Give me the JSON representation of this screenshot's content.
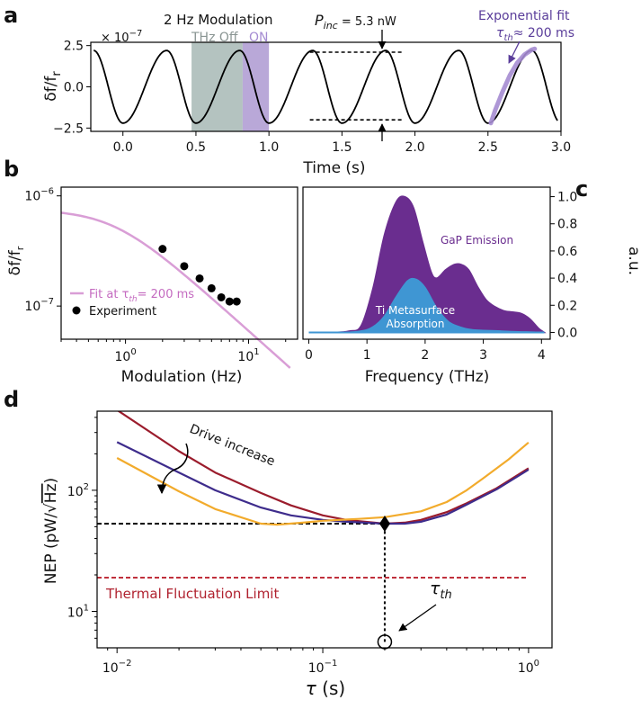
{
  "chart_data": [
    {
      "panel": "a",
      "type": "line",
      "xlabel": "Time (s)",
      "ylabel": "δf/f",
      "ylabel_sub": "r",
      "y_multiplier": "× 10",
      "y_multiplier_exp": "−7",
      "xlim": [
        -0.22,
        3.0
      ],
      "ylim": [
        -2.7,
        2.7
      ],
      "xticks": [
        0.0,
        0.5,
        1.0,
        1.5,
        2.0,
        2.5,
        3.0
      ],
      "xtick_labels": [
        "0.0",
        "0.5",
        "1.0",
        "1.5",
        "2.0",
        "2.5",
        "3.0"
      ],
      "yticks": [
        -2.5,
        0.0,
        2.5
      ],
      "ytick_labels": [
        "−2.5",
        "0.0",
        "2.5"
      ],
      "modulation": {
        "period": 0.5,
        "amplitude": 2.2,
        "first_min": 0.0,
        "first_max": 0.3,
        "x_start": -0.2,
        "x_end": 2.98
      },
      "shaded_regions": [
        {
          "label": "THz Off",
          "x": [
            0.47,
            0.82
          ],
          "color": "#b4c3c0"
        },
        {
          "label": "ON",
          "x": [
            0.82,
            1.0
          ],
          "color": "#b9a8d8"
        }
      ],
      "fit": {
        "x": [
          2.52,
          2.55,
          2.6,
          2.65,
          2.7,
          2.75,
          2.8,
          2.82
        ],
        "y": [
          -2.2,
          -1.4,
          -0.3,
          0.7,
          1.45,
          1.95,
          2.25,
          2.3
        ],
        "color": "#a58cd2"
      },
      "annotations": {
        "title": "2 Hz Modulation",
        "off": "THz Off",
        "on": "ON",
        "power_prefix": "P",
        "power_sub": "inc",
        "power_value": " = 5.3 nW",
        "fit_title": "Exponential fit",
        "fit_tau_prefix": "τ",
        "fit_tau_sub": "th",
        "fit_tau_value": "≈ 200 ms",
        "ref_lines": [
          {
            "y": 2.1,
            "x": [
              1.28,
              1.92
            ]
          },
          {
            "y": -2.0,
            "x": [
              1.28,
              1.92
            ]
          }
        ],
        "arrow_x": 1.77
      },
      "colors": {
        "signal": "#000000",
        "fit_text": "#5a3d9a"
      }
    },
    {
      "panel": "b",
      "type": "scatter",
      "xlabel": "Modulation (Hz)",
      "ylabel": "δf/f",
      "ylabel_sub": "r",
      "x_scale": "log",
      "y_scale": "log",
      "xlim": [
        0.3,
        25
      ],
      "ylim": [
        5e-08,
        1.2e-06
      ],
      "xticks": [
        1,
        10
      ],
      "xtick_bases": [
        "10",
        "10"
      ],
      "xtick_exps": [
        "0",
        "1"
      ],
      "yticks": [
        1e-07,
        1e-06
      ],
      "ytick_bases": [
        "10",
        "10"
      ],
      "ytick_exps": [
        "−7",
        "−6"
      ],
      "experiment": {
        "x": [
          2,
          3,
          4,
          5,
          6,
          7,
          8
        ],
        "y": [
          3.3e-07,
          2.3e-07,
          1.78e-07,
          1.45e-07,
          1.2e-07,
          1.1e-07,
          1.1e-07
        ]
      },
      "fit": {
        "tau": 0.2,
        "y0": 7.5e-07,
        "x_start": 0.3,
        "x_end": 22
      },
      "legend": [
        {
          "text_prefix": "Fit at τ",
          "text_sub": "th",
          "text_suffix": "= 200 ms",
          "marker": "line",
          "color": "#d99ed6"
        },
        {
          "text": "Experiment",
          "marker": "dot",
          "color": "#000000"
        }
      ],
      "legend_position": "lower-left",
      "colors": {
        "fit": "#d99ed6",
        "points": "#000000"
      }
    },
    {
      "panel": "c",
      "type": "area",
      "xlabel": "Frequency (THz)",
      "ylabel": "a.u.",
      "ylabel_position": "right",
      "xlim": [
        -0.1,
        4.15
      ],
      "ylim": [
        -0.05,
        1.07
      ],
      "xticks": [
        0,
        1,
        2,
        3,
        4
      ],
      "xtick_labels": [
        "0",
        "1",
        "2",
        "3",
        "4"
      ],
      "yticks": [
        0.0,
        0.2,
        0.4,
        0.6,
        0.8,
        1.0
      ],
      "ytick_labels": [
        "0.0",
        "0.2",
        "0.4",
        "0.6",
        "0.8",
        "1.0"
      ],
      "series": [
        {
          "name": "GaP Emission",
          "color": "#6a2d8f",
          "x": [
            0,
            0.4,
            0.7,
            0.9,
            1.1,
            1.3,
            1.5,
            1.65,
            1.8,
            1.95,
            2.1,
            2.2,
            2.35,
            2.5,
            2.62,
            2.75,
            2.9,
            3.05,
            3.2,
            3.35,
            3.5,
            3.65,
            3.8,
            3.95,
            4.05
          ],
          "y": [
            0,
            0,
            0.01,
            0.05,
            0.32,
            0.72,
            0.96,
            1.0,
            0.92,
            0.68,
            0.45,
            0.4,
            0.46,
            0.5,
            0.5,
            0.46,
            0.34,
            0.24,
            0.19,
            0.16,
            0.15,
            0.14,
            0.1,
            0.03,
            0.0
          ]
        },
        {
          "name": "Ti Metasurface Absorption",
          "color": "#3f96d3",
          "x": [
            0,
            0.6,
            0.9,
            1.1,
            1.3,
            1.5,
            1.7,
            1.85,
            2.0,
            2.2,
            2.4,
            2.6,
            2.8,
            3.0,
            3.3,
            3.6,
            3.9,
            4.05
          ],
          "y": [
            0,
            0,
            0.01,
            0.04,
            0.12,
            0.26,
            0.38,
            0.39,
            0.33,
            0.18,
            0.08,
            0.04,
            0.02,
            0.015,
            0.01,
            0.005,
            0.002,
            0.0
          ]
        }
      ],
      "annotations": {
        "emission": "GaP Emission",
        "absorption_line1": "Ti Metasurface",
        "absorption_line2": "Absorption"
      }
    },
    {
      "panel": "d",
      "type": "line",
      "xlabel": "τ (s)",
      "ylabel": "NEP (pW/√Hz)",
      "ylabel_text": "NEP (pW/",
      "ylabel_radicand": "Hz",
      "x_scale": "log",
      "y_scale": "log",
      "xlim": [
        0.008,
        1.3
      ],
      "ylim": [
        5,
        450
      ],
      "xticks": [
        0.01,
        0.1,
        1
      ],
      "xtick_bases": [
        "10",
        "10",
        "10"
      ],
      "xtick_exps": [
        "−2",
        "−1",
        "0"
      ],
      "yticks": [
        10,
        100
      ],
      "ytick_bases": [
        "10",
        "10"
      ],
      "ytick_exps": [
        "1",
        "2"
      ],
      "series": [
        {
          "color": "#9b1c2c",
          "x": [
            0.01,
            0.02,
            0.03,
            0.05,
            0.07,
            0.1,
            0.13,
            0.16,
            0.2,
            0.25,
            0.3,
            0.4,
            0.5,
            0.7,
            1.0
          ],
          "y": [
            460,
            210,
            140,
            95,
            75,
            62,
            57,
            55,
            53,
            54,
            57,
            66,
            78,
            104,
            152
          ]
        },
        {
          "color": "#3e2c8c",
          "x": [
            0.01,
            0.02,
            0.03,
            0.05,
            0.07,
            0.1,
            0.13,
            0.16,
            0.2,
            0.25,
            0.3,
            0.4,
            0.5,
            0.7,
            1.0
          ],
          "y": [
            250,
            140,
            100,
            72,
            62,
            57,
            55,
            54,
            53,
            53,
            55,
            63,
            76,
            102,
            148
          ]
        },
        {
          "color": "#f2ab2c",
          "x": [
            0.01,
            0.02,
            0.03,
            0.05,
            0.06,
            0.08,
            0.1,
            0.15,
            0.2,
            0.3,
            0.4,
            0.5,
            0.6,
            0.8,
            1.0
          ],
          "y": [
            185,
            98,
            70,
            53,
            52,
            54,
            56,
            58,
            60,
            67,
            80,
            100,
            125,
            180,
            248
          ]
        }
      ],
      "reference_lines": [
        {
          "kind": "horizontal",
          "y": 53,
          "x": [
            0.008,
            0.2
          ],
          "color": "#000000",
          "style": "dashed"
        },
        {
          "kind": "vertical",
          "x": 0.2,
          "y": [
            5.6,
            53
          ],
          "color": "#000000",
          "style": "dotted"
        },
        {
          "kind": "horizontal",
          "y": 19,
          "x": [
            0.008,
            1.0
          ],
          "color": "#c0303c",
          "style": "dashed",
          "label": "Thermal Fluctuation Limit"
        }
      ],
      "marker": {
        "x": 0.2,
        "y": 53
      },
      "circle": {
        "x": 0.2,
        "y": 5.6
      },
      "annotations": {
        "drive": "Drive increase",
        "thermal": "Thermal Fluctuation Limit",
        "tau_prefix": "τ",
        "tau_sub": "th"
      },
      "colors": {
        "thermal": "#c0303c"
      }
    }
  ],
  "panel_labels": {
    "a": "a",
    "b": "b",
    "c": "c",
    "d": "d"
  }
}
